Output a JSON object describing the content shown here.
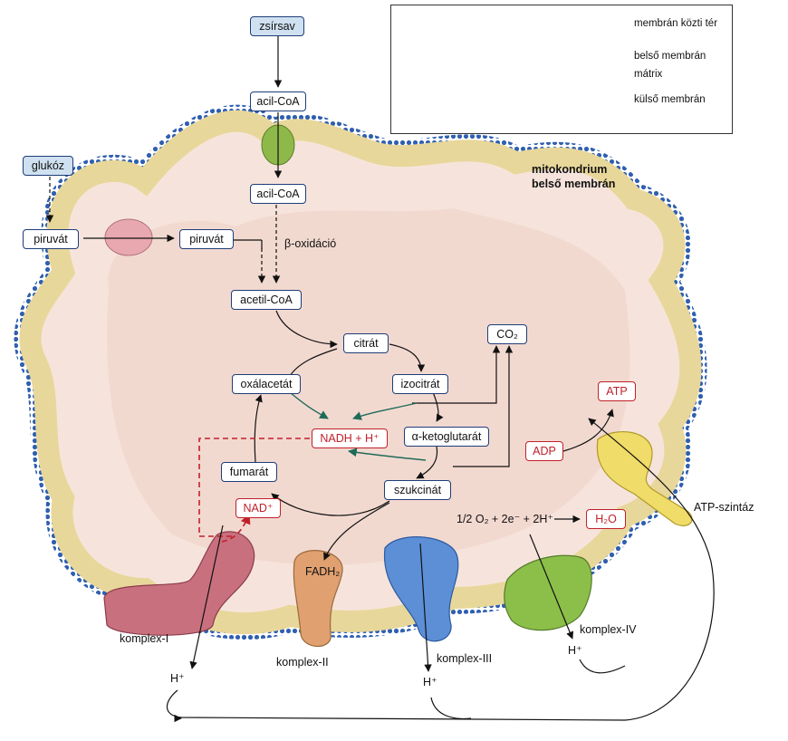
{
  "inset": {
    "labels": [
      "membrán közti tér",
      "belső membrán",
      "mátrix",
      "külső membrán"
    ]
  },
  "membrane_title_1": "mitokondrium",
  "membrane_title_2": "belső membrán",
  "substrates": {
    "zsirsav": "zsírsav",
    "glukoz": "glukóz"
  },
  "boxes": {
    "acil_coa_top": "acil-CoA",
    "acil_coa_inner": "acil-CoA",
    "piruvat_out": "piruvát",
    "piruvat_in": "piruvát",
    "acetil_coa": "acetil-CoA",
    "citrat": "citrát",
    "izocitrat": "izocitrát",
    "oxalacetat": "oxálacetát",
    "ketoglutarat": "α-ketoglutarát",
    "fumarat": "fumarát",
    "szukcinat": "szukcinát",
    "nadh": "NADH + H⁺",
    "nad": "NAD⁺",
    "co2": "CO₂",
    "atp": "ATP",
    "adp": "ADP",
    "h2o": "H₂O"
  },
  "labels": {
    "beta_oxidacio": "β-oxidáció",
    "fadh2": "FADH₂",
    "oxygen_eq": "1/2 O₂ + 2e⁻ + 2H⁺",
    "atp_szintaz": "ATP-szintáz",
    "komplex_1": "komplex-I",
    "komplex_2": "komplex-II",
    "komplex_3": "komplex-III",
    "komplex_4": "komplex-IV",
    "h_1": "H⁺",
    "h_3": "H⁺",
    "h_4": "H⁺"
  },
  "colors": {
    "membrane_fill": "#e8d79a",
    "membrane_beads": "#2f5fb0",
    "matrix": "#f2d8d0",
    "box_border": "#1e3d78",
    "red": "#c0202a",
    "teal_arrow": "#1f6b5a",
    "complex_1": "#c9707e",
    "complex_2": "#e0a070",
    "complex_3": "#5c8fd6",
    "complex_4": "#8cbf4a",
    "atp_synthase": "#f0dc68"
  }
}
